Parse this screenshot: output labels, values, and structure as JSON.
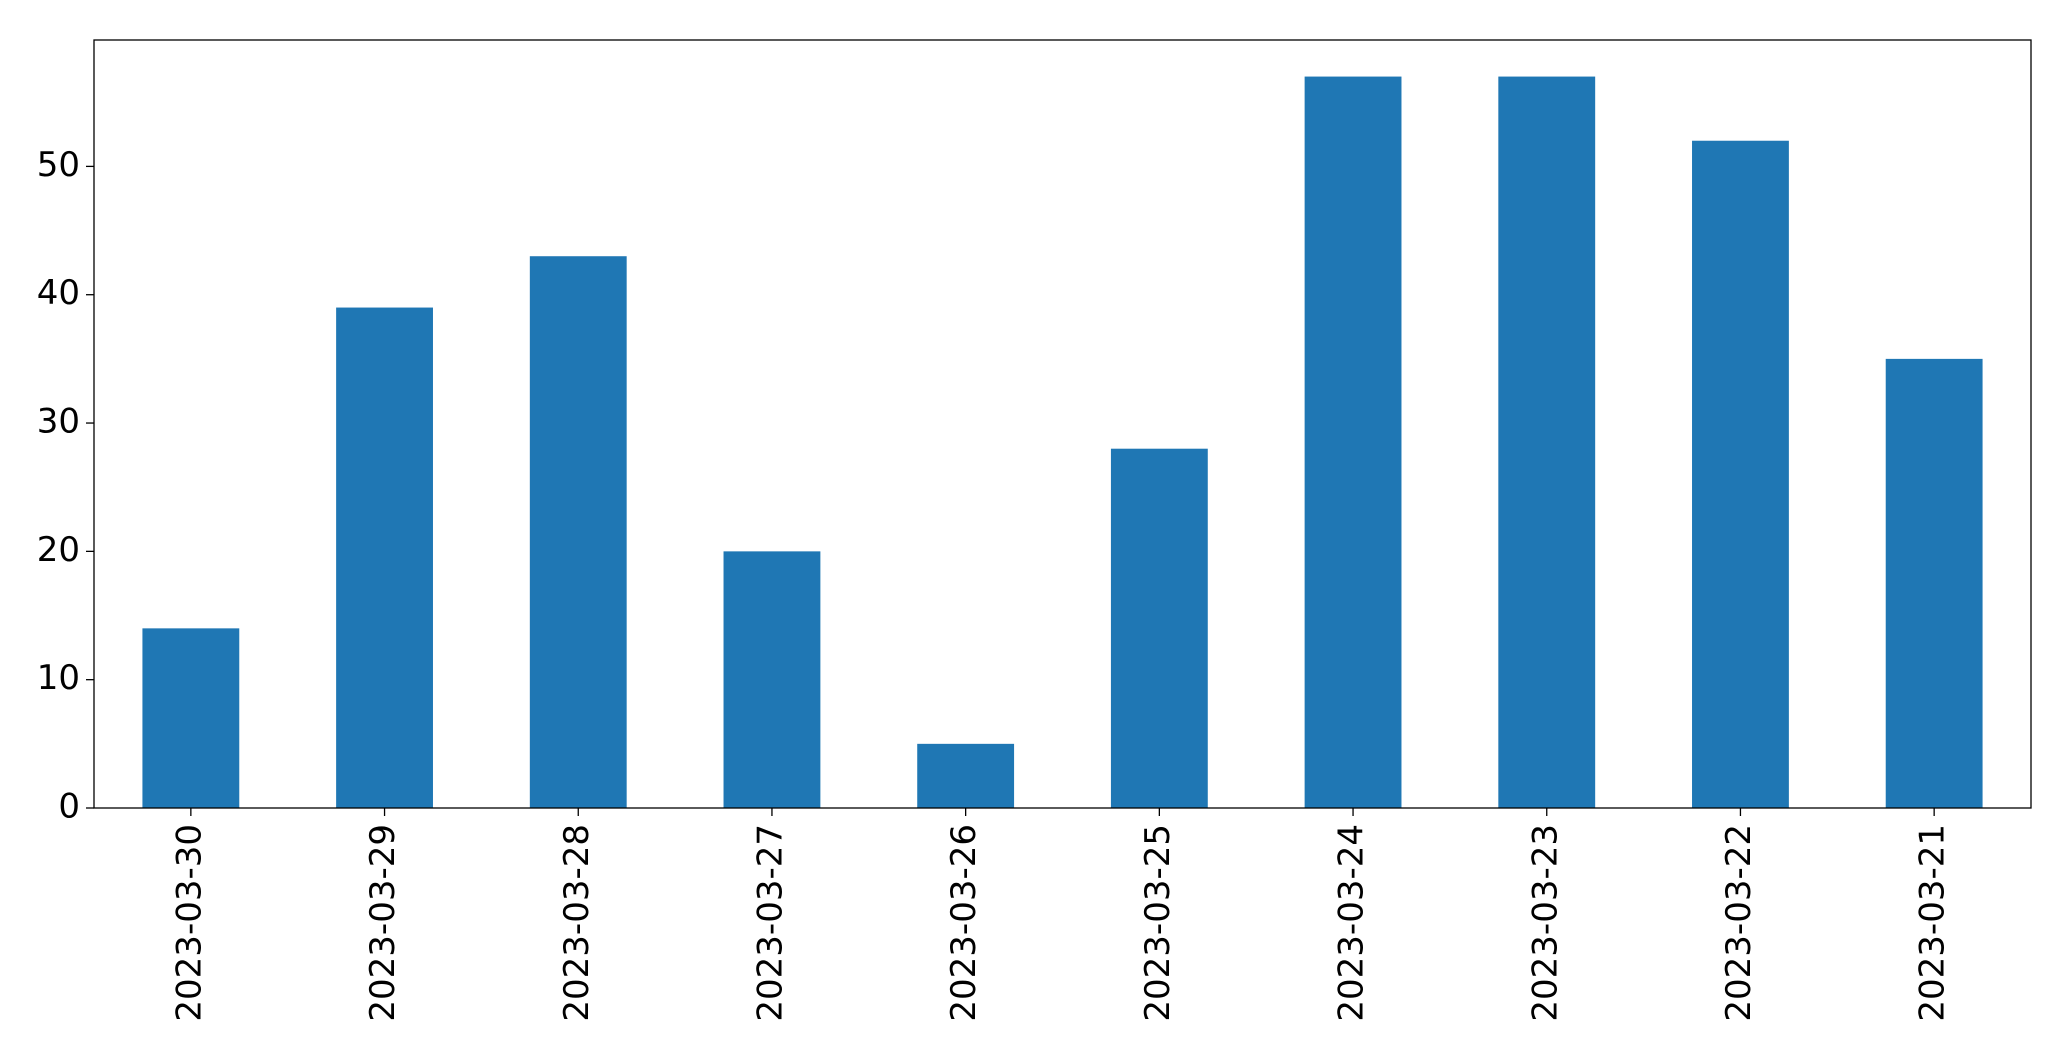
{
  "chart_data": {
    "type": "bar",
    "categories": [
      "2023-03-30",
      "2023-03-29",
      "2023-03-28",
      "2023-03-27",
      "2023-03-26",
      "2023-03-25",
      "2023-03-24",
      "2023-03-23",
      "2023-03-22",
      "2023-03-21"
    ],
    "values": [
      14,
      39,
      43,
      20,
      5,
      28,
      57,
      57,
      52,
      35
    ],
    "color": "#1f77b4",
    "ylim": [
      0,
      59.85
    ],
    "yticks": [
      0,
      10,
      20,
      30,
      40,
      50
    ],
    "grid": false
  }
}
